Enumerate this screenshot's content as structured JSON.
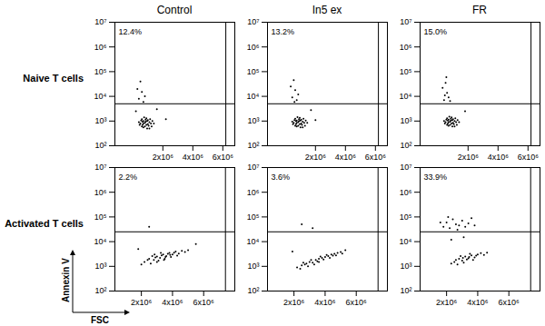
{
  "chart_data": [
    {
      "type": "scatter",
      "title": "Control",
      "row_label": "Naive T cells",
      "annotations": [
        "12.4%"
      ],
      "color": "#000000",
      "log": "y",
      "xlim": [
        -1200000,
        6800000
      ],
      "xticks": [
        {
          "value": 2000000,
          "label": "2x10⁶"
        },
        {
          "value": 4000000,
          "label": "4x10⁶"
        },
        {
          "value": 6000000,
          "label": "6x10⁶"
        }
      ],
      "ylim": [
        100,
        10000000
      ],
      "yticks": [
        {
          "value": 100,
          "label": "10²"
        },
        {
          "value": 1000,
          "label": "10³"
        },
        {
          "value": 10000,
          "label": "10⁴"
        },
        {
          "value": 100000,
          "label": "10⁵"
        },
        {
          "value": 1000000,
          "label": "10⁶"
        },
        {
          "value": 10000000,
          "label": "10⁷"
        }
      ],
      "gates": {
        "x": 6200000,
        "y": 5000
      },
      "points": [
        [
          500000,
          800
        ],
        [
          700000,
          1000
        ],
        [
          900000,
          700
        ],
        [
          1100000,
          900
        ],
        [
          600000,
          1200
        ],
        [
          800000,
          600
        ],
        [
          1000000,
          1100
        ],
        [
          1200000,
          800
        ],
        [
          400000,
          900
        ],
        [
          750000,
          1400
        ],
        [
          950000,
          500
        ],
        [
          650000,
          700
        ],
        [
          850000,
          950
        ],
        [
          1050000,
          650
        ],
        [
          1300000,
          1000
        ],
        [
          550000,
          1050
        ],
        [
          900000,
          1300
        ],
        [
          700000,
          550
        ],
        [
          1150000,
          1200
        ],
        [
          800000,
          850
        ],
        [
          600000,
          600
        ],
        [
          1000000,
          750
        ],
        [
          1250000,
          600
        ],
        [
          450000,
          700
        ],
        [
          950000,
          1000
        ],
        [
          700000,
          800
        ],
        [
          850000,
          1150
        ],
        [
          1100000,
          500
        ],
        [
          650000,
          950
        ],
        [
          1400000,
          800
        ],
        [
          400000,
          8000
        ],
        [
          600000,
          15000
        ],
        [
          500000,
          40000
        ],
        [
          700000,
          6000
        ],
        [
          300000,
          20000
        ],
        [
          800000,
          10000
        ],
        [
          1600000,
          3000
        ],
        [
          200000,
          2500
        ],
        [
          2200000,
          1200
        ]
      ]
    },
    {
      "type": "scatter",
      "title": "In5 ex",
      "annotations": [
        "13.2%"
      ],
      "color": "#000000",
      "log": "y",
      "xlim": [
        -1200000,
        6800000
      ],
      "xticks": [
        {
          "value": 2000000,
          "label": "2x10⁶"
        },
        {
          "value": 4000000,
          "label": "4x10⁶"
        },
        {
          "value": 6000000,
          "label": "6x10⁶"
        }
      ],
      "ylim": [
        100,
        10000000
      ],
      "yticks": [
        {
          "value": 100,
          "label": "10²"
        },
        {
          "value": 1000,
          "label": "10³"
        },
        {
          "value": 10000,
          "label": "10⁴"
        },
        {
          "value": 100000,
          "label": "10⁵"
        },
        {
          "value": 1000000,
          "label": "10⁶"
        },
        {
          "value": 10000000,
          "label": "10⁷"
        }
      ],
      "gates": {
        "x": 6200000,
        "y": 5000
      },
      "points": [
        [
          550000,
          850
        ],
        [
          750000,
          1050
        ],
        [
          950000,
          750
        ],
        [
          1150000,
          950
        ],
        [
          650000,
          1250
        ],
        [
          850000,
          650
        ],
        [
          1050000,
          1150
        ],
        [
          1250000,
          850
        ],
        [
          450000,
          950
        ],
        [
          800000,
          1450
        ],
        [
          1000000,
          550
        ],
        [
          700000,
          750
        ],
        [
          900000,
          1000
        ],
        [
          1100000,
          700
        ],
        [
          1350000,
          1050
        ],
        [
          600000,
          1100
        ],
        [
          950000,
          1350
        ],
        [
          750000,
          600
        ],
        [
          1200000,
          1250
        ],
        [
          850000,
          900
        ],
        [
          650000,
          650
        ],
        [
          1050000,
          800
        ],
        [
          1300000,
          650
        ],
        [
          500000,
          750
        ],
        [
          1000000,
          1050
        ],
        [
          750000,
          850
        ],
        [
          900000,
          1200
        ],
        [
          1150000,
          550
        ],
        [
          700000,
          1000
        ],
        [
          1450000,
          850
        ],
        [
          450000,
          9000
        ],
        [
          650000,
          18000
        ],
        [
          550000,
          45000
        ],
        [
          750000,
          7000
        ],
        [
          350000,
          25000
        ],
        [
          850000,
          12000
        ],
        [
          600000,
          6000
        ],
        [
          1700000,
          2800
        ],
        [
          2000000,
          1100
        ]
      ]
    },
    {
      "type": "scatter",
      "title": "FR",
      "annotations": [
        "15.0%"
      ],
      "color": "#000000",
      "log": "y",
      "xlim": [
        -1200000,
        6800000
      ],
      "xticks": [
        {
          "value": 2000000,
          "label": "2x10⁶"
        },
        {
          "value": 4000000,
          "label": "4x10⁶"
        },
        {
          "value": 6000000,
          "label": "6x10⁶"
        }
      ],
      "ylim": [
        100,
        10000000
      ],
      "yticks": [
        {
          "value": 100,
          "label": "10²"
        },
        {
          "value": 1000,
          "label": "10³"
        },
        {
          "value": 10000,
          "label": "10⁴"
        },
        {
          "value": 100000,
          "label": "10⁵"
        },
        {
          "value": 1000000,
          "label": "10⁶"
        },
        {
          "value": 10000000,
          "label": "10⁷"
        }
      ],
      "gates": {
        "x": 6200000,
        "y": 5000
      },
      "points": [
        [
          500000,
          900
        ],
        [
          700000,
          1150
        ],
        [
          900000,
          800
        ],
        [
          1100000,
          1000
        ],
        [
          600000,
          1300
        ],
        [
          800000,
          700
        ],
        [
          1000000,
          1200
        ],
        [
          1200000,
          900
        ],
        [
          400000,
          1000
        ],
        [
          750000,
          1500
        ],
        [
          950000,
          600
        ],
        [
          650000,
          800
        ],
        [
          850000,
          1050
        ],
        [
          1050000,
          750
        ],
        [
          1300000,
          1100
        ],
        [
          550000,
          1150
        ],
        [
          900000,
          1400
        ],
        [
          700000,
          650
        ],
        [
          1150000,
          1300
        ],
        [
          800000,
          950
        ],
        [
          600000,
          700
        ],
        [
          1000000,
          850
        ],
        [
          1250000,
          700
        ],
        [
          450000,
          800
        ],
        [
          950000,
          1100
        ],
        [
          700000,
          900
        ],
        [
          850000,
          1250
        ],
        [
          1100000,
          600
        ],
        [
          650000,
          1050
        ],
        [
          1400000,
          900
        ],
        [
          400000,
          7000
        ],
        [
          600000,
          14000
        ],
        [
          500000,
          35000
        ],
        [
          700000,
          9000
        ],
        [
          300000,
          22000
        ],
        [
          800000,
          6500
        ],
        [
          550000,
          60000
        ],
        [
          450000,
          11000
        ],
        [
          1800000,
          2500
        ]
      ]
    },
    {
      "type": "scatter",
      "row_label": "Activated T cells",
      "xlabel": "FSC",
      "ylabel": "Annexin V",
      "annotations": [
        "2.2%"
      ],
      "color": "#000000",
      "log": "y",
      "xlim": [
        300000,
        8000000
      ],
      "xticks": [
        {
          "value": 2000000,
          "label": "2x10⁶"
        },
        {
          "value": 4000000,
          "label": "4x10⁶"
        },
        {
          "value": 6000000,
          "label": "6x10⁶"
        }
      ],
      "ylim": [
        100,
        10000000
      ],
      "yticks": [
        {
          "value": 100,
          "label": "10²"
        },
        {
          "value": 1000,
          "label": "10³"
        },
        {
          "value": 10000,
          "label": "10⁴"
        },
        {
          "value": 100000,
          "label": "10⁵"
        },
        {
          "value": 1000000,
          "label": "10⁶"
        },
        {
          "value": 10000000,
          "label": "10⁷"
        }
      ],
      "gates": {
        "x": 7400000,
        "y": 25000
      },
      "points": [
        [
          2200000,
          1500
        ],
        [
          2500000,
          2000
        ],
        [
          2800000,
          1800
        ],
        [
          3000000,
          2500
        ],
        [
          3200000,
          2200
        ],
        [
          3400000,
          3000
        ],
        [
          3600000,
          2600
        ],
        [
          3800000,
          3500
        ],
        [
          4000000,
          3000
        ],
        [
          4200000,
          4000
        ],
        [
          2600000,
          1300
        ],
        [
          2900000,
          2300
        ],
        [
          3100000,
          1700
        ],
        [
          3300000,
          2800
        ],
        [
          3500000,
          2000
        ],
        [
          3700000,
          3200
        ],
        [
          3900000,
          2400
        ],
        [
          4100000,
          3600
        ],
        [
          4400000,
          3300
        ],
        [
          4600000,
          4200
        ],
        [
          2400000,
          1800
        ],
        [
          2700000,
          2600
        ],
        [
          3000000,
          1500
        ],
        [
          3250000,
          3500
        ],
        [
          3550000,
          2400
        ],
        [
          3850000,
          2900
        ],
        [
          4300000,
          2700
        ],
        [
          4800000,
          3800
        ],
        [
          2000000,
          1200
        ],
        [
          5000000,
          4500
        ],
        [
          3450000,
          1800
        ],
        [
          2850000,
          3000
        ],
        [
          2500000,
          40000
        ],
        [
          1800000,
          5000
        ],
        [
          5500000,
          8000
        ]
      ]
    },
    {
      "type": "scatter",
      "annotations": [
        "3.6%"
      ],
      "color": "#000000",
      "log": "y",
      "xlim": [
        300000,
        8000000
      ],
      "xticks": [
        {
          "value": 2000000,
          "label": "2x10⁶"
        },
        {
          "value": 4000000,
          "label": "4x10⁶"
        },
        {
          "value": 6000000,
          "label": "6x10⁶"
        }
      ],
      "ylim": [
        100,
        10000000
      ],
      "yticks": [
        {
          "value": 100,
          "label": "10²"
        },
        {
          "value": 1000,
          "label": "10³"
        },
        {
          "value": 10000,
          "label": "10⁴"
        },
        {
          "value": 100000,
          "label": "10⁵"
        },
        {
          "value": 1000000,
          "label": "10⁶"
        },
        {
          "value": 10000000,
          "label": "10⁷"
        }
      ],
      "gates": {
        "x": 7400000,
        "y": 25000
      },
      "points": [
        [
          2200000,
          900
        ],
        [
          2500000,
          1100
        ],
        [
          2800000,
          1300
        ],
        [
          3000000,
          1500
        ],
        [
          3200000,
          1400
        ],
        [
          3400000,
          1800
        ],
        [
          3600000,
          2000
        ],
        [
          3800000,
          2200
        ],
        [
          4000000,
          2400
        ],
        [
          4200000,
          2600
        ],
        [
          4400000,
          3000
        ],
        [
          4600000,
          3200
        ],
        [
          4800000,
          3500
        ],
        [
          5000000,
          3800
        ],
        [
          5300000,
          4500
        ],
        [
          2600000,
          1400
        ],
        [
          2900000,
          1000
        ],
        [
          3100000,
          1800
        ],
        [
          3300000,
          1200
        ],
        [
          3500000,
          1600
        ],
        [
          3700000,
          2500
        ],
        [
          3900000,
          1900
        ],
        [
          4100000,
          2900
        ],
        [
          4300000,
          2200
        ],
        [
          4500000,
          2700
        ],
        [
          2400000,
          800
        ],
        [
          2700000,
          1200
        ],
        [
          3600000,
          1500
        ],
        [
          4700000,
          2800
        ],
        [
          5100000,
          3300
        ],
        [
          2500000,
          50000
        ],
        [
          3200000,
          35000
        ],
        [
          1900000,
          4000
        ]
      ]
    },
    {
      "type": "scatter",
      "annotations": [
        "33.9%"
      ],
      "color": "#000000",
      "log": "y",
      "xlim": [
        300000,
        8000000
      ],
      "xticks": [
        {
          "value": 2000000,
          "label": "2x10⁶"
        },
        {
          "value": 4000000,
          "label": "4x10⁶"
        },
        {
          "value": 6000000,
          "label": "6x10⁶"
        }
      ],
      "ylim": [
        100,
        10000000
      ],
      "yticks": [
        {
          "value": 100,
          "label": "10²"
        },
        {
          "value": 1000,
          "label": "10³"
        },
        {
          "value": 10000,
          "label": "10⁴"
        },
        {
          "value": 100000,
          "label": "10⁵"
        },
        {
          "value": 1000000,
          "label": "10⁶"
        },
        {
          "value": 10000000,
          "label": "10⁷"
        }
      ],
      "gates": {
        "x": 7400000,
        "y": 25000
      },
      "points": [
        [
          2500000,
          1500
        ],
        [
          2800000,
          2000
        ],
        [
          3000000,
          1700
        ],
        [
          3200000,
          2500
        ],
        [
          3400000,
          2100
        ],
        [
          3600000,
          2800
        ],
        [
          3800000,
          2300
        ],
        [
          4000000,
          3000
        ],
        [
          2700000,
          1200
        ],
        [
          2900000,
          2600
        ],
        [
          3100000,
          1400
        ],
        [
          3300000,
          1900
        ],
        [
          3500000,
          3200
        ],
        [
          3700000,
          1800
        ],
        [
          3900000,
          2700
        ],
        [
          4200000,
          3400
        ],
        [
          4400000,
          2900
        ],
        [
          2600000,
          1800
        ],
        [
          3450000,
          2400
        ],
        [
          3050000,
          2200
        ],
        [
          4600000,
          3600
        ],
        [
          2300000,
          1300
        ],
        [
          1800000,
          40000
        ],
        [
          2000000,
          60000
        ],
        [
          2200000,
          35000
        ],
        [
          2400000,
          80000
        ],
        [
          2600000,
          50000
        ],
        [
          2800000,
          45000
        ],
        [
          3000000,
          70000
        ],
        [
          3200000,
          40000
        ],
        [
          3400000,
          55000
        ],
        [
          3600000,
          90000
        ],
        [
          2100000,
          100000
        ],
        [
          2700000,
          30000
        ],
        [
          3800000,
          45000
        ],
        [
          1600000,
          60000
        ],
        [
          2300000,
          12000
        ],
        [
          3100000,
          15000
        ]
      ]
    }
  ]
}
